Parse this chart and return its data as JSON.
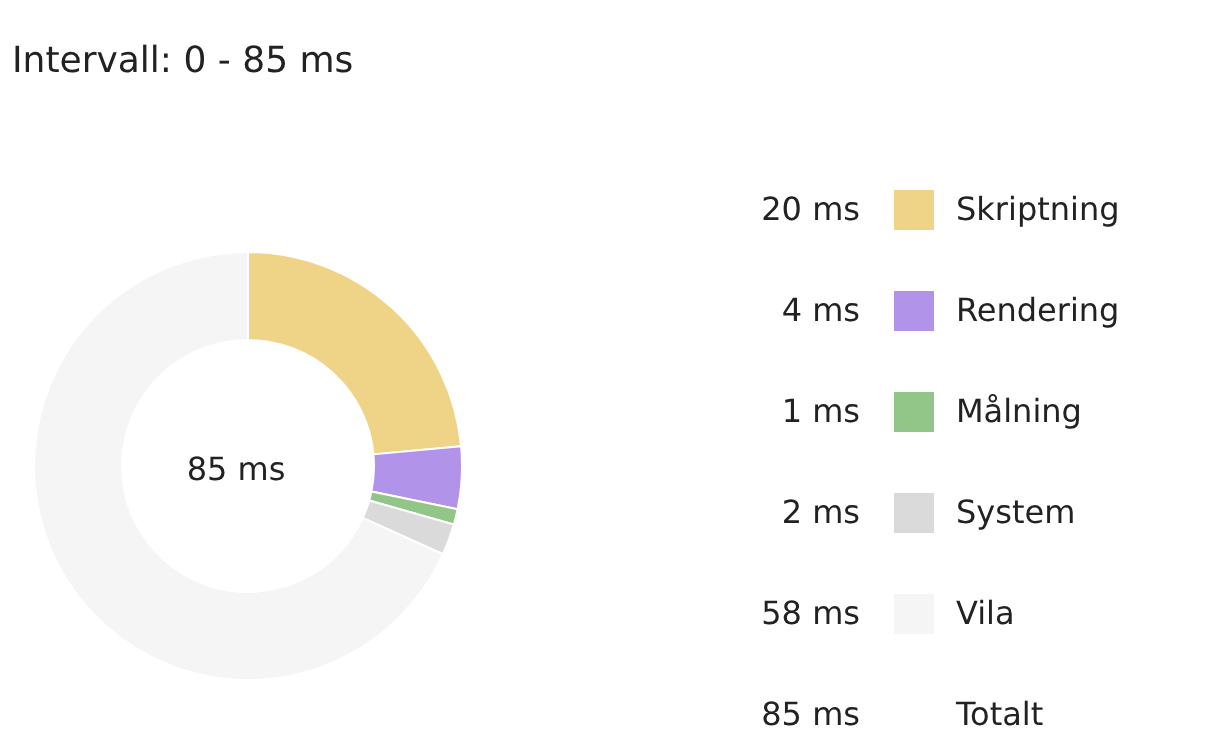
{
  "chart_data": {
    "type": "donut",
    "title": "Intervall: 0 - 85 ms",
    "categories": [
      "Skriptning",
      "Rendering",
      "Målning",
      "System",
      "Vila"
    ],
    "values": [
      20,
      4,
      1,
      2,
      58
    ],
    "colors": [
      "#efd386",
      "#b193ea",
      "#92c588",
      "#dadada",
      "#f5f5f5"
    ],
    "value_labels": [
      "20 ms",
      "4 ms",
      "1 ms",
      "2 ms",
      "58 ms"
    ],
    "annotations": [
      "85 ms",
      "85 ms",
      "Totalt"
    ],
    "legend": "right"
  }
}
